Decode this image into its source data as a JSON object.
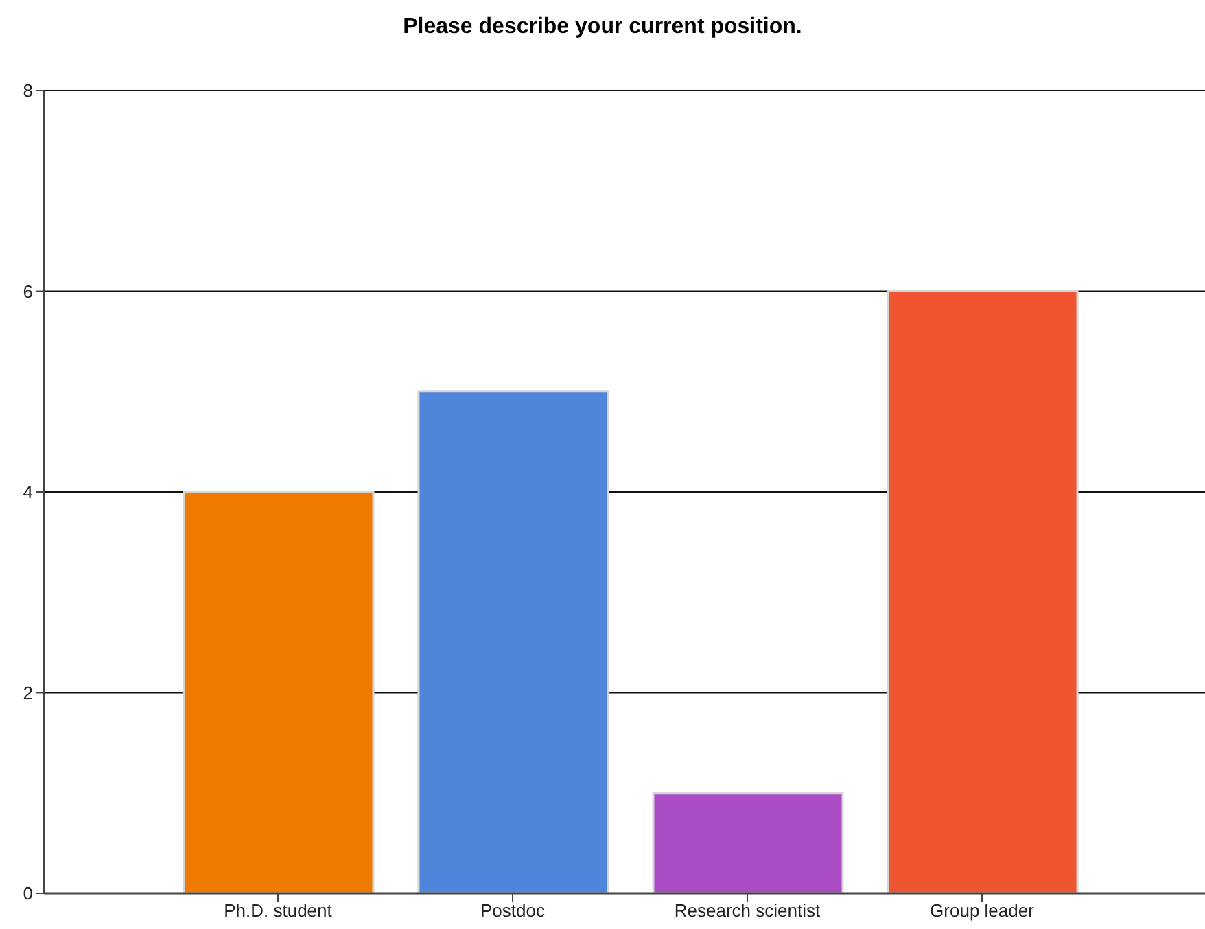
{
  "chart_data": {
    "type": "bar",
    "title": "Please describe your current position.",
    "categories": [
      "Ph.D. student",
      "Postdoc",
      "Research scientist",
      "Group leader"
    ],
    "values": [
      4,
      5,
      1,
      6
    ],
    "colors": [
      "#f07a00",
      "#4e86dc",
      "#aa4dc4",
      "#ee5530"
    ],
    "ylim": [
      0,
      8
    ],
    "yticks": [
      0,
      2,
      4,
      6,
      8
    ],
    "grid": "y"
  }
}
